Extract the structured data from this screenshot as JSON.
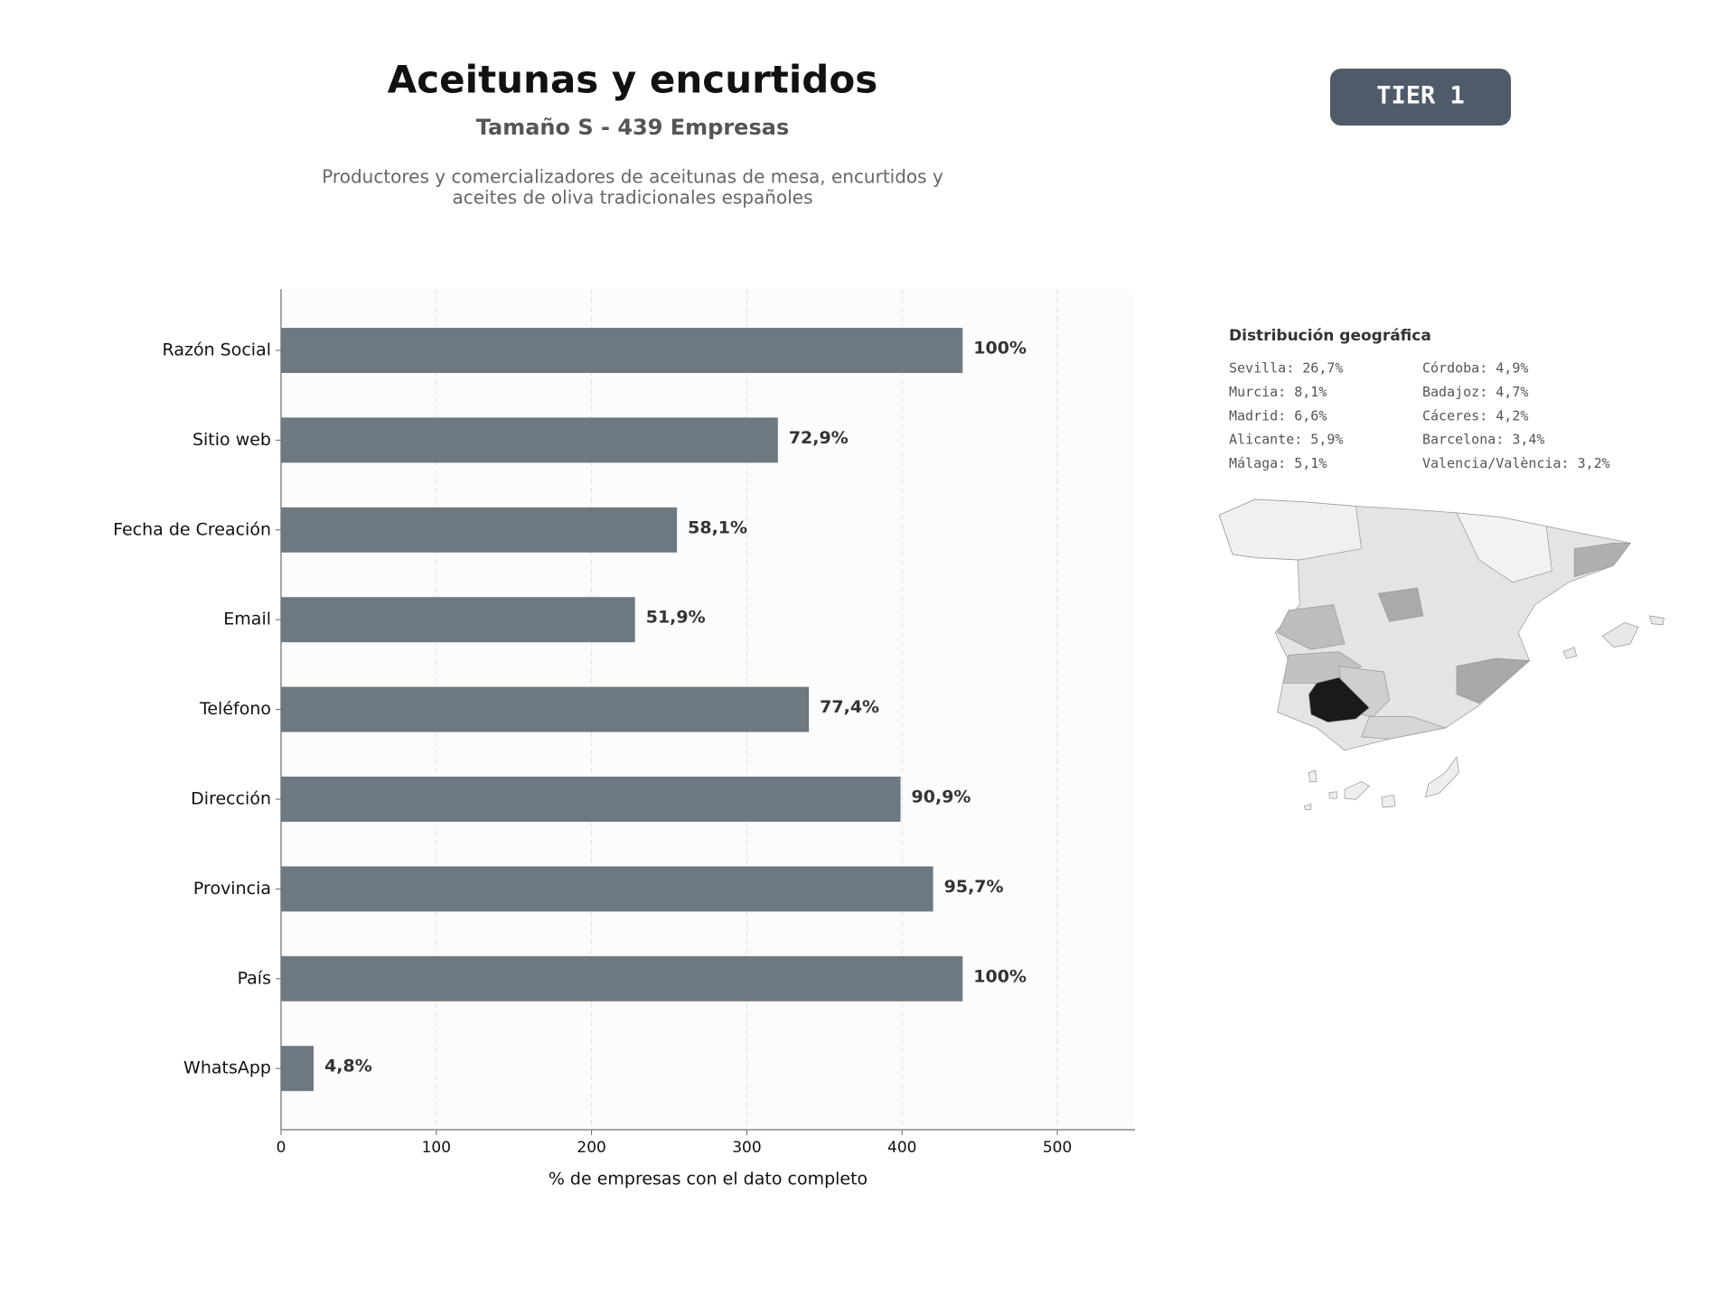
{
  "header": {
    "title": "Aceitunas y encurtidos",
    "subtitle": "Tamaño S - 439 Empresas",
    "description": [
      "Productores y comercializadores de aceitunas de mesa, encurtidos y",
      "aceites de oliva tradicionales españoles"
    ],
    "badge": "TIER 1"
  },
  "chart_data": {
    "type": "bar",
    "orientation": "horizontal",
    "categories": [
      "Razón Social",
      "Sitio web",
      "Fecha de Creación",
      "Email",
      "Teléfono",
      "Dirección",
      "Provincia",
      "País",
      "WhatsApp"
    ],
    "values": [
      439,
      320,
      255,
      228,
      340,
      399,
      420,
      439,
      21
    ],
    "value_labels": [
      "100%",
      "72,9%",
      "58,1%",
      "51,9%",
      "77,4%",
      "90,9%",
      "95,7%",
      "100%",
      "4,8%"
    ],
    "color": "#6e7881",
    "xlim": [
      0,
      550
    ],
    "xticks": [
      0,
      100,
      200,
      300,
      400,
      500
    ],
    "xlabel": "% de empresas con el dato completo",
    "grid": true
  },
  "geo": {
    "title": "Distribución geográfica",
    "items": [
      "Sevilla: 26,7%",
      "Murcia: 8,1%",
      "Madrid: 6,6%",
      "Alicante: 5,9%",
      "Málaga: 5,1%",
      "Córdoba: 4,9%",
      "Badajoz: 4,7%",
      "Cáceres: 4,2%",
      "Barcelona: 3,4%",
      "Valencia/València: 3,2%"
    ]
  }
}
